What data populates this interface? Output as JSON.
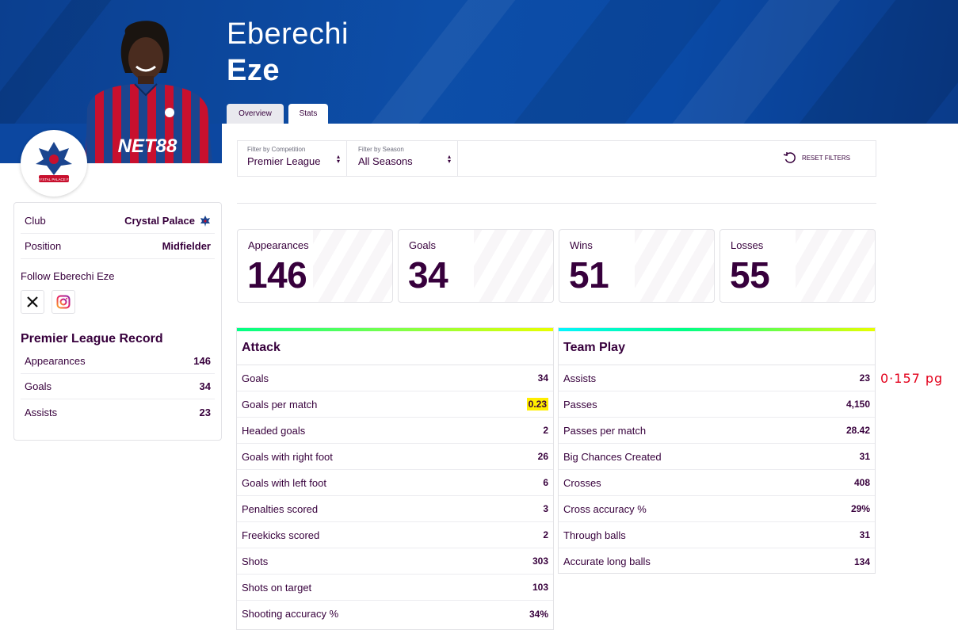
{
  "player": {
    "first_name": "Eberechi",
    "last_name": "Eze"
  },
  "tabs": [
    {
      "label": "Overview"
    },
    {
      "label": "Stats"
    }
  ],
  "filters": {
    "competition": {
      "label": "Filter by Competition",
      "value": "Premier League"
    },
    "season": {
      "label": "Filter by Season",
      "value": "All Seasons"
    },
    "reset_label": "RESET FILTERS"
  },
  "sidebar": {
    "club_label": "Club",
    "club_value": "Crystal Palace",
    "position_label": "Position",
    "position_value": "Midfielder",
    "follow_label": "Follow Eberechi Eze",
    "record_title": "Premier League Record",
    "record": [
      {
        "label": "Appearances",
        "value": "146"
      },
      {
        "label": "Goals",
        "value": "34"
      },
      {
        "label": "Assists",
        "value": "23"
      }
    ]
  },
  "badge_text": "CRYSTAL PALACE F.C.",
  "summary_cards": [
    {
      "label": "Appearances",
      "value": "146"
    },
    {
      "label": "Goals",
      "value": "34"
    },
    {
      "label": "Wins",
      "value": "51"
    },
    {
      "label": "Losses",
      "value": "55"
    }
  ],
  "attack": {
    "title": "Attack",
    "rows": [
      {
        "label": "Goals",
        "value": "34"
      },
      {
        "label": "Goals per match",
        "value": "0.23"
      },
      {
        "label": "Headed goals",
        "value": "2"
      },
      {
        "label": "Goals with right foot",
        "value": "26"
      },
      {
        "label": "Goals with left foot",
        "value": "6"
      },
      {
        "label": "Penalties scored",
        "value": "3"
      },
      {
        "label": "Freekicks scored",
        "value": "2"
      },
      {
        "label": "Shots",
        "value": "303"
      },
      {
        "label": "Shots on target",
        "value": "103"
      },
      {
        "label": "Shooting accuracy %",
        "value": "34%"
      }
    ]
  },
  "team_play": {
    "title": "Team Play",
    "rows": [
      {
        "label": "Assists",
        "value": "23"
      },
      {
        "label": "Passes",
        "value": "4,150"
      },
      {
        "label": "Passes per match",
        "value": "28.42"
      },
      {
        "label": "Big Chances Created",
        "value": "31"
      },
      {
        "label": "Crosses",
        "value": "408"
      },
      {
        "label": "Cross accuracy %",
        "value": "29%"
      },
      {
        "label": "Through balls",
        "value": "31"
      },
      {
        "label": "Accurate long balls",
        "value": "134"
      }
    ]
  },
  "annotation": "0·157 pg",
  "colors": {
    "brand_purple": "#37003c",
    "hero_blue": "#0d4ea8",
    "highlight_yellow": "#ffee00",
    "annotation_red": "#e3001b"
  }
}
